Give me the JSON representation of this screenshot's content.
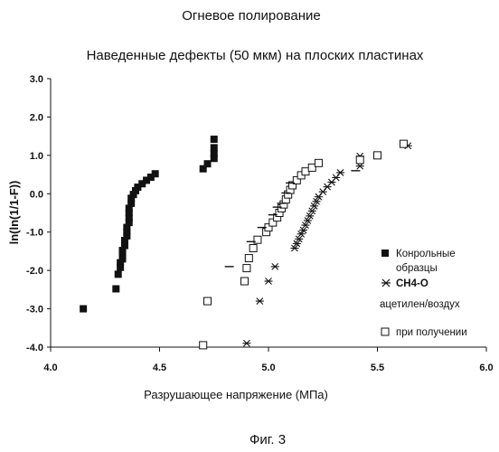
{
  "chart_data": {
    "type": "scatter",
    "title": "Огневое полирование",
    "subtitle": "Наведенные дефекты (50 мкм) на плоских пластинах",
    "xlabel": "Разрушающее напряжение (МПа)",
    "ylabel": "ln(ln(1/1-F))",
    "caption": "Фиг. 3",
    "xlim": [
      4.0,
      6.0
    ],
    "ylim": [
      -4.0,
      3.0
    ],
    "x_ticks": [
      "4.0",
      "4.5",
      "5.0",
      "5.5",
      "6.0"
    ],
    "y_ticks": [
      "3.0",
      "2.0",
      "1.0",
      "0.0",
      "-1.0",
      "-2.0",
      "-3.0",
      "-4.0"
    ],
    "grid": false,
    "legend_position": "right",
    "legend_note": "ацетилен/воздух",
    "series": [
      {
        "name": "Конрольные образцы",
        "marker": "filled-square",
        "color": "#111111",
        "points": [
          [
            4.15,
            -3.0
          ],
          [
            4.3,
            -2.48
          ],
          [
            4.31,
            -2.1
          ],
          [
            4.32,
            -1.92
          ],
          [
            4.32,
            -1.8
          ],
          [
            4.33,
            -1.7
          ],
          [
            4.33,
            -1.58
          ],
          [
            4.33,
            -1.48
          ],
          [
            4.34,
            -1.35
          ],
          [
            4.34,
            -1.22
          ],
          [
            4.35,
            -1.1
          ],
          [
            4.35,
            -1.0
          ],
          [
            4.35,
            -0.88
          ],
          [
            4.36,
            -0.75
          ],
          [
            4.36,
            -0.62
          ],
          [
            4.36,
            -0.5
          ],
          [
            4.36,
            -0.38
          ],
          [
            4.37,
            -0.25
          ],
          [
            4.37,
            -0.12
          ],
          [
            4.38,
            -0.02
          ],
          [
            4.39,
            0.08
          ],
          [
            4.4,
            0.17
          ],
          [
            4.42,
            0.26
          ],
          [
            4.44,
            0.35
          ],
          [
            4.46,
            0.43
          ],
          [
            4.48,
            0.52
          ],
          [
            4.7,
            0.65
          ],
          [
            4.72,
            0.78
          ],
          [
            4.75,
            0.92
          ],
          [
            4.75,
            1.05
          ],
          [
            4.75,
            1.2
          ],
          [
            4.75,
            1.42
          ]
        ]
      },
      {
        "name": "СН4-О",
        "marker": "asterisk",
        "color": "#111111",
        "points": [
          [
            4.9,
            -3.9
          ],
          [
            4.96,
            -2.8
          ],
          [
            5.0,
            -2.28
          ],
          [
            5.03,
            -1.9
          ],
          [
            5.12,
            -1.42
          ],
          [
            5.13,
            -1.3
          ],
          [
            5.14,
            -1.18
          ],
          [
            5.15,
            -1.05
          ],
          [
            5.16,
            -0.95
          ],
          [
            5.17,
            -0.82
          ],
          [
            5.18,
            -0.7
          ],
          [
            5.19,
            -0.58
          ],
          [
            5.2,
            -0.45
          ],
          [
            5.21,
            -0.32
          ],
          [
            5.22,
            -0.2
          ],
          [
            5.23,
            -0.08
          ],
          [
            5.25,
            0.05
          ],
          [
            5.27,
            0.18
          ],
          [
            5.29,
            0.3
          ],
          [
            5.31,
            0.42
          ],
          [
            5.33,
            0.55
          ],
          [
            5.42,
            0.72
          ],
          [
            5.42,
            0.98
          ],
          [
            5.64,
            1.25
          ]
        ]
      },
      {
        "name": "при получении",
        "marker": "open-square",
        "color": "#111111",
        "points": [
          [
            4.7,
            -3.95
          ],
          [
            4.72,
            -2.8
          ],
          [
            4.89,
            -2.28
          ],
          [
            4.9,
            -1.94
          ],
          [
            4.91,
            -1.68
          ],
          [
            4.93,
            -1.42
          ],
          [
            4.95,
            -1.2
          ],
          [
            4.99,
            -1.0
          ],
          [
            5.0,
            -0.88
          ],
          [
            5.02,
            -0.75
          ],
          [
            5.04,
            -0.62
          ],
          [
            5.05,
            -0.5
          ],
          [
            5.06,
            -0.38
          ],
          [
            5.07,
            -0.28
          ],
          [
            5.08,
            -0.15
          ],
          [
            5.09,
            -0.02
          ],
          [
            5.1,
            0.1
          ],
          [
            5.11,
            0.22
          ],
          [
            5.13,
            0.35
          ],
          [
            5.15,
            0.48
          ],
          [
            5.17,
            0.58
          ],
          [
            5.2,
            0.68
          ],
          [
            5.23,
            0.8
          ],
          [
            5.42,
            0.88
          ],
          [
            5.5,
            1.0
          ],
          [
            5.62,
            1.3
          ]
        ]
      },
      {
        "name": "",
        "marker": "dash",
        "color": "#111111",
        "points": [
          [
            4.82,
            -1.9
          ],
          [
            4.92,
            -1.25
          ],
          [
            4.97,
            -0.88
          ],
          [
            5.02,
            -0.55
          ],
          [
            5.04,
            -0.35
          ],
          [
            5.06,
            -0.25
          ],
          [
            5.08,
            0.02
          ],
          [
            5.1,
            0.28
          ],
          [
            5.4,
            0.6
          ]
        ]
      }
    ]
  }
}
